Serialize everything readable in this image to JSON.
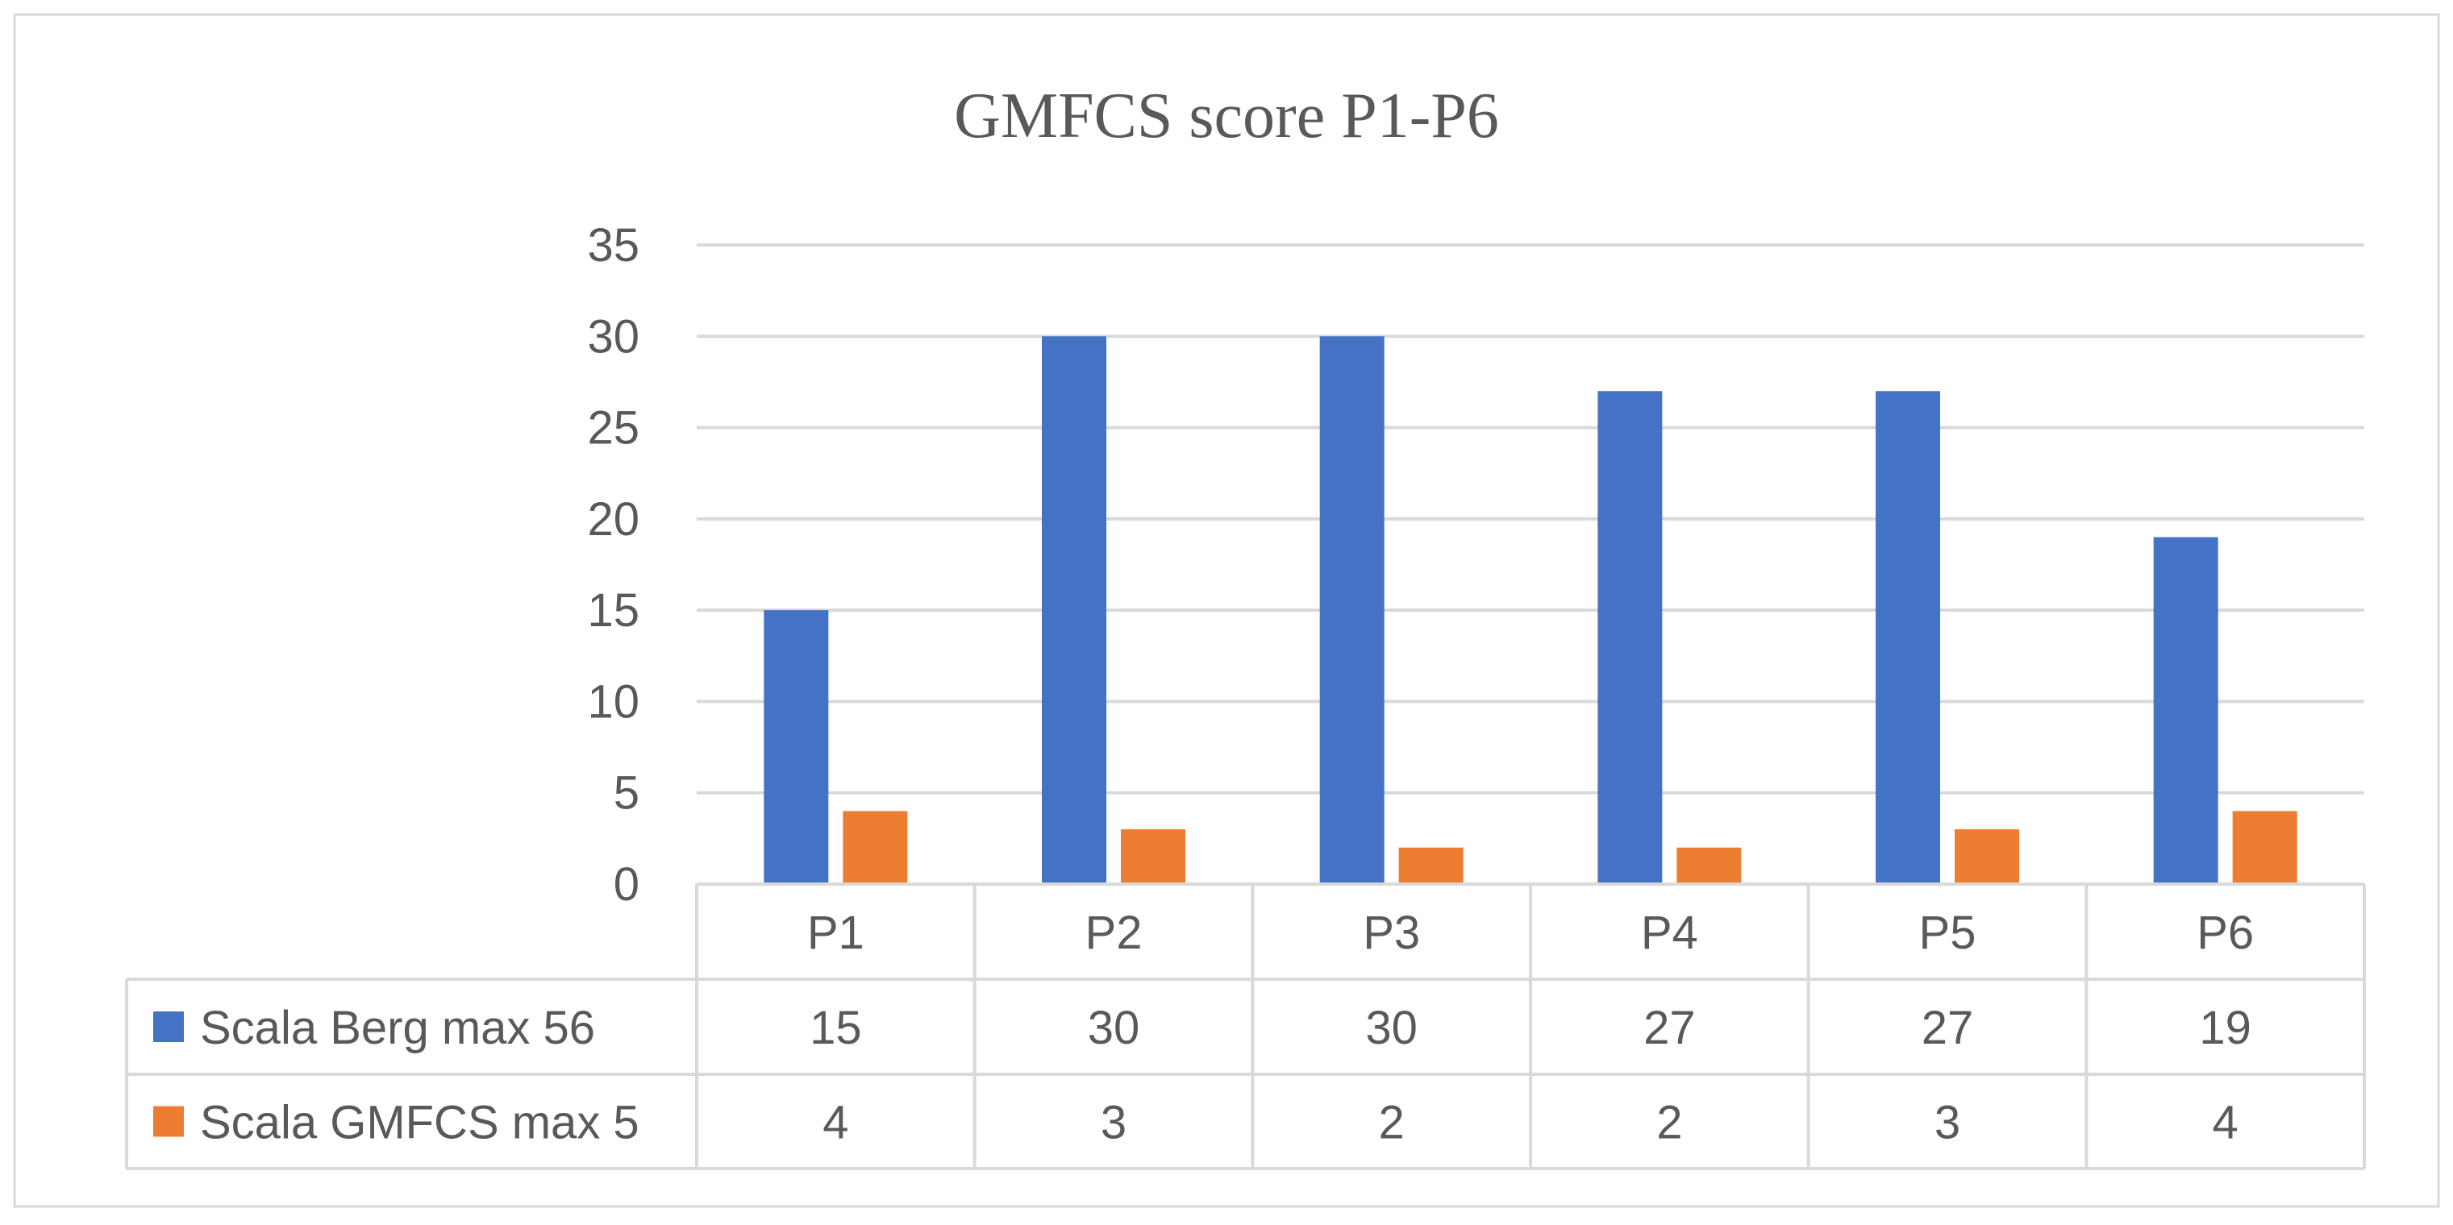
{
  "chart_data": {
    "type": "bar",
    "title": "GMFCS score P1-P6",
    "categories": [
      "P1",
      "P2",
      "P3",
      "P4",
      "P5",
      "P6"
    ],
    "series": [
      {
        "name": "Scala Berg max 56",
        "values": [
          15,
          30,
          30,
          27,
          27,
          19
        ],
        "color": "#4472C4"
      },
      {
        "name": "Scala GMFCS max 5",
        "values": [
          4,
          3,
          2,
          2,
          3,
          4
        ],
        "color": "#ED7D31"
      }
    ],
    "ylim": [
      0,
      35
    ],
    "yticks": [
      0,
      5,
      10,
      15,
      20,
      25,
      30,
      35
    ],
    "grid": true,
    "legend": "data-table",
    "data_table": true
  }
}
